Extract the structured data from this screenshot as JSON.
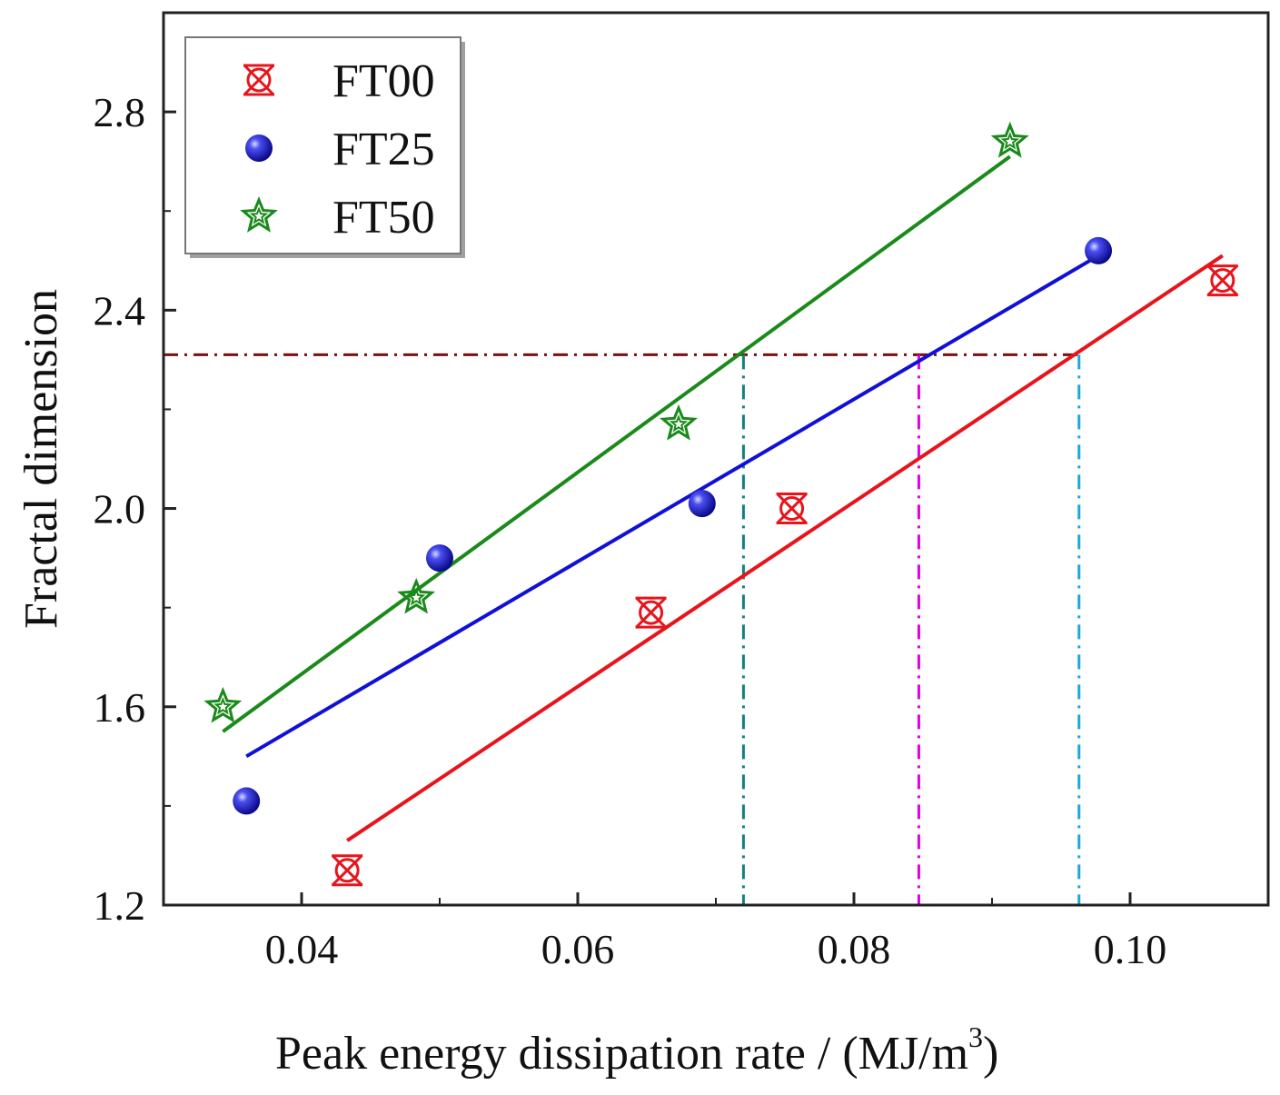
{
  "chart_data": {
    "type": "scatter",
    "title": "",
    "xlabel": "Peak energy dissipation rate / (MJ/m",
    "xlabel_sup": "3",
    "xlabel_end": ")",
    "ylabel": "Fractal dimension",
    "xlim": [
      0.03,
      0.11
    ],
    "ylim": [
      1.2,
      3.0
    ],
    "xticks": [
      0.04,
      0.06,
      0.08,
      0.1
    ],
    "xtick_labels": [
      "0.04",
      "0.06",
      "0.08",
      "0.10"
    ],
    "yticks": [
      1.2,
      1.6,
      2.0,
      2.4,
      2.8
    ],
    "ytick_labels": [
      "1.2",
      "1.6",
      "2.0",
      "2.4",
      "2.8"
    ],
    "legend_position": "top-left",
    "series": [
      {
        "name": "FT00",
        "color": "#e8141c",
        "marker": "crossed-circle",
        "x": [
          0.0433,
          0.0653,
          0.0755,
          0.1067
        ],
        "y": [
          1.27,
          1.79,
          2.0,
          2.46
        ],
        "fit": {
          "x": [
            0.0433,
            0.1067
          ],
          "y": [
            1.33,
            2.51
          ]
        }
      },
      {
        "name": "FT25",
        "color": "#1010d8",
        "marker": "sphere",
        "x": [
          0.036,
          0.05,
          0.069,
          0.0977
        ],
        "y": [
          1.41,
          1.9,
          2.01,
          2.52
        ],
        "fit": {
          "x": [
            0.036,
            0.0977
          ],
          "y": [
            1.5,
            2.51
          ]
        }
      },
      {
        "name": "FT50",
        "color": "#1a8a1a",
        "marker": "star",
        "x": [
          0.0343,
          0.0483,
          0.0673,
          0.0913
        ],
        "y": [
          1.6,
          1.82,
          2.17,
          2.74
        ],
        "fit": {
          "x": [
            0.0343,
            0.0913
          ],
          "y": [
            1.55,
            2.71
          ]
        }
      }
    ],
    "reference_lines": {
      "horizontal": {
        "y": 2.31,
        "x_end": 0.0963,
        "color": "#7a1010"
      },
      "vertical": [
        {
          "x": 0.072,
          "y_top": 2.31,
          "color": "#138080"
        },
        {
          "x": 0.0847,
          "y_top": 2.31,
          "color": "#e000e0"
        },
        {
          "x": 0.0963,
          "y_top": 2.31,
          "color": "#1ca8d8"
        }
      ]
    }
  }
}
